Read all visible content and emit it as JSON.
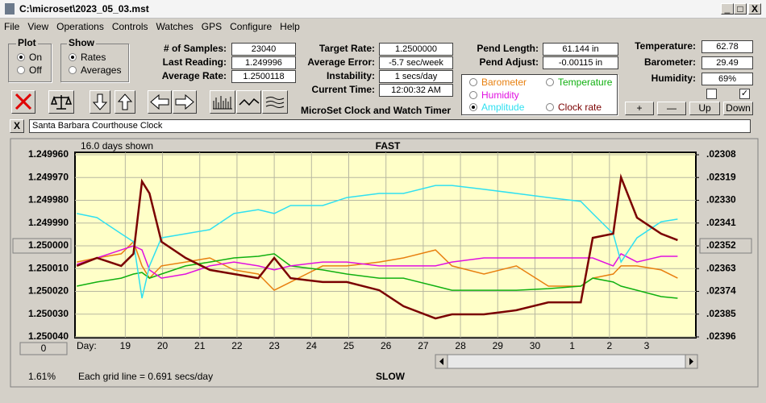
{
  "window": {
    "title": "C:\\microset\\2023_05_03.mst"
  },
  "menu": [
    "File",
    "View",
    "Operations",
    "Controls",
    "Watches",
    "GPS",
    "Configure",
    "Help"
  ],
  "plot": {
    "label": "Plot",
    "options": [
      "On",
      "Off"
    ],
    "selected": 0
  },
  "show": {
    "label": "Show",
    "options": [
      "Rates",
      "Averages"
    ],
    "selected": 0
  },
  "fields_left": [
    {
      "label": "# of Samples:",
      "value": "23040"
    },
    {
      "label": "Last Reading:",
      "value": "1.249996"
    },
    {
      "label": "Average Rate:",
      "value": "1.2500118"
    }
  ],
  "fields_mid": [
    {
      "label": "Target Rate:",
      "value": "1.2500000"
    },
    {
      "label": "Average Error:",
      "value": "-5.7 sec/week"
    },
    {
      "label": "Instability:",
      "value": "1 secs/day"
    },
    {
      "label": "Current Time:",
      "value": "12:00:32 AM"
    }
  ],
  "app_title": "MicroSet Clock and Watch Timer",
  "pend": [
    {
      "label": "Pend Length:",
      "value": "61.144 in"
    },
    {
      "label": "Pend Adjust:",
      "value": "-0.00115 in"
    }
  ],
  "env": [
    {
      "label": "Temperature:",
      "value": "62.78"
    },
    {
      "label": "Barometer:",
      "value": "29.49"
    },
    {
      "label": "Humidity:",
      "value": "69%"
    }
  ],
  "env_buttons": [
    "+",
    "—",
    "Up",
    "Down"
  ],
  "checkboxes": [
    false,
    true
  ],
  "clock_name": "Santa Barbara Courthouse Clock",
  "chart_data": {
    "type": "line",
    "days_shown": "16.0 days shown",
    "title": "FAST",
    "bottom_label": "SLOW",
    "x_label": "Day:",
    "note": "Each grid line = 0.691 secs/day",
    "status": "1.61%",
    "offset_button": "0",
    "selected_series": 3,
    "inverted": true,
    "grid": true,
    "x": [
      -1.3,
      -0.76,
      -0.11,
      0.22,
      0.45,
      0.65,
      0.97,
      1.62,
      2.27,
      2.92,
      3.57,
      4.0,
      4.44,
      5.3,
      5.95,
      6.82,
      7.47,
      8.33,
      8.77,
      9.63,
      10.5,
      11.36,
      12.23,
      12.55,
      13.1,
      13.31,
      13.74,
      14.39,
      14.83
    ],
    "xlim": [
      -1.35,
      15.32
    ],
    "xticks": [
      {
        "value": 0,
        "label": "19"
      },
      {
        "value": 1,
        "label": "20"
      },
      {
        "value": 2,
        "label": "21"
      },
      {
        "value": 3,
        "label": "22"
      },
      {
        "value": 4,
        "label": "23"
      },
      {
        "value": 5,
        "label": "24"
      },
      {
        "value": 6,
        "label": "25"
      },
      {
        "value": 7,
        "label": "26"
      },
      {
        "value": 8,
        "label": "27"
      },
      {
        "value": 9,
        "label": "28"
      },
      {
        "value": 10,
        "label": "29"
      },
      {
        "value": 11,
        "label": "30"
      },
      {
        "value": 12,
        "label": "1"
      },
      {
        "value": 13,
        "label": "2"
      },
      {
        "value": 14,
        "label": "3"
      }
    ],
    "ylim": [
      1.24996,
      1.25004
    ],
    "yticks": [
      {
        "value": 1.24996,
        "label": "1.249960"
      },
      {
        "value": 1.24997,
        "label": "1.249970"
      },
      {
        "value": 1.24998,
        "label": "1.249980"
      },
      {
        "value": 1.24999,
        "label": "1.249990"
      },
      {
        "value": 1.25,
        "label": "1.250000"
      },
      {
        "value": 1.25001,
        "label": "1.250010"
      },
      {
        "value": 1.25002,
        "label": "1.250020"
      },
      {
        "value": 1.25003,
        "label": "1.250030"
      },
      {
        "value": 1.25004,
        "label": "1.250040"
      }
    ],
    "y2lim": [
      0.02308,
      0.02396
    ],
    "y2ticks": [
      {
        "value": 0.02308,
        "label": ".02308"
      },
      {
        "value": 0.02319,
        "label": ".02319"
      },
      {
        "value": 0.0233,
        "label": ".02330"
      },
      {
        "value": 0.02341,
        "label": ".02341"
      },
      {
        "value": 0.02352,
        "label": ".02352"
      },
      {
        "value": 0.02363,
        "label": ".02363"
      },
      {
        "value": 0.02374,
        "label": ".02374"
      },
      {
        "value": 0.02385,
        "label": ".02385"
      },
      {
        "value": 0.02396,
        "label": ".02396"
      }
    ],
    "series": [
      {
        "name": "Barometer",
        "color": "#e88010",
        "values": [
          1.2500071,
          1.2500053,
          1.2500035,
          1.2499982,
          1.2500088,
          1.2500142,
          1.2500088,
          1.2500071,
          1.2500053,
          1.2500106,
          1.2500124,
          1.2500195,
          1.2500159,
          1.2500088,
          1.2500088,
          1.2500071,
          1.2500053,
          1.2500018,
          1.2500088,
          1.2500124,
          1.2500088,
          1.2500177,
          1.2500177,
          1.2500142,
          1.2500124,
          1.2500088,
          1.2500088,
          1.2500106,
          1.2500142
        ]
      },
      {
        "name": "Temperature",
        "color": "#10b010",
        "values": [
          1.2500177,
          1.2500159,
          1.2500142,
          1.2500124,
          1.2500117,
          1.2500142,
          1.2500124,
          1.2500088,
          1.2500071,
          1.2500053,
          1.2500046,
          1.2500035,
          1.2500088,
          1.2500106,
          1.2500124,
          1.2500142,
          1.2500142,
          1.2500177,
          1.2500195,
          1.2500195,
          1.2500195,
          1.2500188,
          1.2500177,
          1.2500142,
          1.2500159,
          1.2500177,
          1.2500195,
          1.2500223,
          1.250023
        ]
      },
      {
        "name": "Humidity",
        "color": "#e010e0",
        "values": [
          1.2500081,
          1.2500053,
          1.2500018,
          1.25,
          1.2500018,
          1.2500106,
          1.2500142,
          1.2500124,
          1.2500088,
          1.2500071,
          1.2500088,
          1.2500106,
          1.2500088,
          1.2500071,
          1.2500071,
          1.2500088,
          1.2500088,
          1.2500088,
          1.2500071,
          1.2500053,
          1.2500053,
          1.2500053,
          1.2500053,
          1.2500053,
          1.2500088,
          1.2500035,
          1.2500071,
          1.2500046,
          1.2500046
        ]
      },
      {
        "name": "Amplitude",
        "color": "#30e0f0",
        "values": [
          1.2499858,
          1.2499876,
          1.2499947,
          1.2499982,
          1.250023,
          1.2500088,
          1.2499965,
          1.2499947,
          1.2499929,
          1.2499858,
          1.2499841,
          1.2499858,
          1.2499823,
          1.2499823,
          1.2499788,
          1.249977,
          1.249977,
          1.2499735,
          1.2499735,
          1.2499752,
          1.249977,
          1.2499788,
          1.2499805,
          1.2499858,
          1.2499947,
          1.2500071,
          1.2499965,
          1.2499894,
          1.2499883
        ]
      },
      {
        "name": "Clock rate",
        "color": "#7a0000",
        "values": [
          1.2500088,
          1.2500053,
          1.2500088,
          1.2500035,
          1.2499717,
          1.249977,
          1.2499982,
          1.2500053,
          1.2500106,
          1.2500124,
          1.2500142,
          1.2500053,
          1.2500142,
          1.2500159,
          1.2500159,
          1.2500195,
          1.2500265,
          1.2500319,
          1.2500301,
          1.2500301,
          1.2500283,
          1.2500248,
          1.2500248,
          1.2499965,
          1.2499947,
          1.2499699,
          1.2499876,
          1.2499947,
          1.2499975
        ]
      }
    ]
  }
}
